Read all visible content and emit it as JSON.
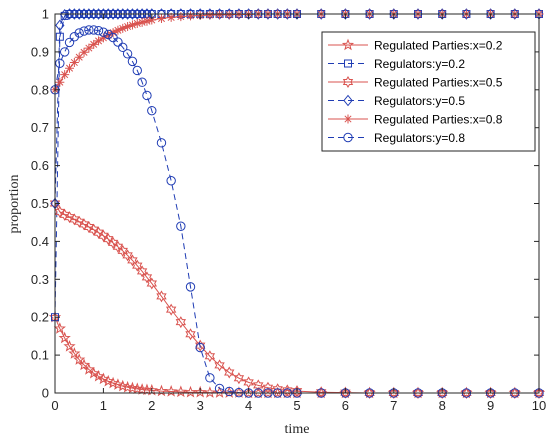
{
  "chart_data": {
    "type": "line",
    "title": "",
    "xlabel": "time",
    "ylabel": "proportion",
    "xlim": [
      0,
      10
    ],
    "ylim": [
      0,
      1
    ],
    "x_ticks": [
      "0",
      "1",
      "2",
      "3",
      "4",
      "5",
      "6",
      "7",
      "8",
      "9",
      "10"
    ],
    "y_ticks": [
      "0",
      "0.1",
      "0.2",
      "0.3",
      "0.4",
      "0.5",
      "0.6",
      "0.7",
      "0.8",
      "0.9",
      "1"
    ],
    "grid": false,
    "legend_position": "top-right",
    "x": [
      0,
      0.1,
      0.2,
      0.3,
      0.4,
      0.5,
      0.6,
      0.7,
      0.8,
      0.9,
      1.0,
      1.1,
      1.2,
      1.3,
      1.4,
      1.5,
      1.6,
      1.7,
      1.8,
      1.9,
      2.0,
      2.2,
      2.4,
      2.6,
      2.8,
      3.0,
      3.2,
      3.4,
      3.6,
      3.8,
      4.0,
      4.2,
      4.4,
      4.6,
      4.8,
      5.0,
      5.5,
      6.0,
      6.5,
      7.0,
      7.5,
      8.0,
      8.5,
      9.0,
      9.5,
      10.0
    ],
    "series": [
      {
        "name": "Regulated Parties:x=0.2",
        "color": "#d9534f",
        "marker": "star5",
        "dash": "solid",
        "values": [
          0.2,
          0.17,
          0.145,
          0.123,
          0.104,
          0.088,
          0.074,
          0.062,
          0.052,
          0.044,
          0.037,
          0.031,
          0.026,
          0.022,
          0.018,
          0.015,
          0.013,
          0.011,
          0.009,
          0.008,
          0.007,
          0.005,
          0.004,
          0.003,
          0.002,
          0.002,
          0.001,
          0.001,
          0.001,
          0.001,
          0.0,
          0.0,
          0.0,
          0.0,
          0.0,
          0.0,
          0.0,
          0.0,
          0.0,
          0.0,
          0.0,
          0.0,
          0.0,
          0.0,
          0.0,
          0.0
        ]
      },
      {
        "name": "Regulators:y=0.2",
        "color": "#1f3cb4",
        "marker": "square",
        "dash": "dash",
        "values": [
          0.2,
          0.94,
          0.995,
          1.0,
          1.0,
          1.0,
          1.0,
          1.0,
          1.0,
          1.0,
          1.0,
          1.0,
          1.0,
          1.0,
          1.0,
          1.0,
          1.0,
          1.0,
          1.0,
          1.0,
          1.0,
          1.0,
          1.0,
          1.0,
          1.0,
          1.0,
          1.0,
          1.0,
          1.0,
          1.0,
          1.0,
          1.0,
          1.0,
          1.0,
          1.0,
          1.0,
          1.0,
          1.0,
          1.0,
          1.0,
          1.0,
          1.0,
          1.0,
          1.0,
          1.0,
          1.0
        ]
      },
      {
        "name": "Regulated Parties:x=0.5",
        "color": "#d9534f",
        "marker": "hexagram",
        "dash": "solid",
        "values": [
          0.5,
          0.478,
          0.47,
          0.464,
          0.458,
          0.452,
          0.445,
          0.438,
          0.431,
          0.423,
          0.415,
          0.406,
          0.396,
          0.386,
          0.375,
          0.363,
          0.35,
          0.336,
          0.321,
          0.305,
          0.289,
          0.255,
          0.22,
          0.187,
          0.155,
          0.125,
          0.097,
          0.073,
          0.054,
          0.039,
          0.028,
          0.02,
          0.014,
          0.01,
          0.007,
          0.005,
          0.002,
          0.001,
          0.0,
          0.0,
          0.0,
          0.0,
          0.0,
          0.0,
          0.0,
          0.0
        ]
      },
      {
        "name": "Regulators:y=0.5",
        "color": "#1f3cb4",
        "marker": "diamond",
        "dash": "dash",
        "values": [
          0.5,
          0.97,
          0.998,
          1.0,
          1.0,
          1.0,
          1.0,
          1.0,
          1.0,
          1.0,
          1.0,
          1.0,
          1.0,
          1.0,
          1.0,
          1.0,
          1.0,
          1.0,
          1.0,
          1.0,
          1.0,
          1.0,
          1.0,
          1.0,
          1.0,
          1.0,
          1.0,
          1.0,
          1.0,
          1.0,
          1.0,
          1.0,
          1.0,
          1.0,
          1.0,
          1.0,
          1.0,
          1.0,
          1.0,
          1.0,
          1.0,
          1.0,
          1.0,
          1.0,
          1.0,
          1.0
        ]
      },
      {
        "name": "Regulated Parties:x=0.8",
        "color": "#d9534f",
        "marker": "asterisk",
        "dash": "solid",
        "values": [
          0.8,
          0.82,
          0.84,
          0.857,
          0.872,
          0.886,
          0.899,
          0.91,
          0.92,
          0.929,
          0.937,
          0.944,
          0.951,
          0.957,
          0.962,
          0.967,
          0.971,
          0.975,
          0.978,
          0.981,
          0.984,
          0.988,
          0.991,
          0.993,
          0.995,
          0.996,
          0.997,
          0.998,
          0.998,
          0.999,
          0.999,
          1.0,
          1.0,
          1.0,
          1.0,
          1.0,
          1.0,
          1.0,
          1.0,
          1.0,
          1.0,
          1.0,
          1.0,
          1.0,
          1.0,
          1.0
        ]
      },
      {
        "name": "Regulators:y=0.8",
        "color": "#1f3cb4",
        "marker": "circle",
        "dash": "dash",
        "values": [
          0.8,
          0.87,
          0.9,
          0.925,
          0.94,
          0.95,
          0.955,
          0.958,
          0.958,
          0.956,
          0.952,
          0.946,
          0.938,
          0.926,
          0.912,
          0.895,
          0.875,
          0.851,
          0.82,
          0.785,
          0.745,
          0.66,
          0.56,
          0.44,
          0.28,
          0.12,
          0.04,
          0.012,
          0.004,
          0.001,
          0.0,
          0.0,
          0.0,
          0.0,
          0.0,
          0.0,
          0.0,
          0.0,
          0.0,
          0.0,
          0.0,
          0.0,
          0.0,
          0.0,
          0.0,
          0.0
        ]
      }
    ]
  }
}
